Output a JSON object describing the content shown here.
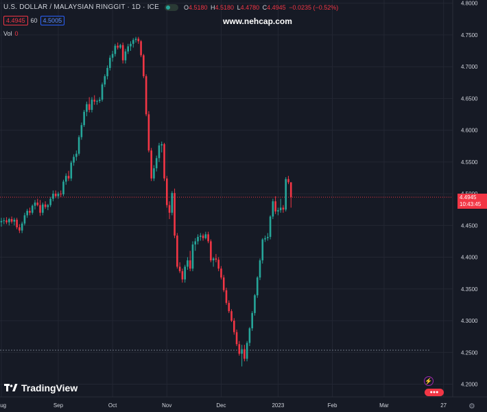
{
  "header": {
    "title": "U.S. DOLLAR / MALAYSIAN RINGGIT · 1D · ICE",
    "o_label": "O",
    "o_value": "4.5180",
    "h_label": "H",
    "h_value": "4.5180",
    "l_label": "L",
    "l_value": "4.4780",
    "c_label": "C",
    "c_value": "4.4945",
    "change": "−0.0235 (−0.52%)",
    "sell_price": "4.4945",
    "spread": "60",
    "buy_price": "4.5005",
    "vol_label": "Vol",
    "vol_value": "0"
  },
  "watermark": "www.nehcap.com",
  "brand": "TradingView",
  "last_price_label": {
    "price": "4.4945",
    "countdown": "10:43:45"
  },
  "colors": {
    "up": "#26a69a",
    "down": "#f23645",
    "background": "#161a25",
    "grid": "#232733",
    "text": "#d1d4dc"
  },
  "chart_data": {
    "type": "candlestick",
    "y_ticks": [
      "4.8000",
      "4.7500",
      "4.7000",
      "4.6500",
      "4.6000",
      "4.5500",
      "4.5000",
      "4.4500",
      "4.4000",
      "4.3500",
      "4.3000",
      "4.2500",
      "4.2000"
    ],
    "ylim": [
      4.18,
      4.805
    ],
    "x_ticks": [
      {
        "label": "Aug",
        "index": 0
      },
      {
        "label": "Sep",
        "index": 22
      },
      {
        "label": "Oct",
        "index": 43
      },
      {
        "label": "Nov",
        "index": 64
      },
      {
        "label": "Dec",
        "index": 85
      },
      {
        "label": "2023",
        "index": 107
      },
      {
        "label": "Feb",
        "index": 128
      },
      {
        "label": "Mar",
        "index": 148
      },
      {
        "label": "27",
        "index": 171
      }
    ],
    "last_price": 4.4945,
    "reference_line": 4.2535,
    "ohlc": [
      [
        4.455,
        4.462,
        4.448,
        4.457
      ],
      [
        4.457,
        4.462,
        4.452,
        4.458
      ],
      [
        4.458,
        4.463,
        4.452,
        4.455
      ],
      [
        4.455,
        4.462,
        4.45,
        4.46
      ],
      [
        4.46,
        4.464,
        4.453,
        4.456
      ],
      [
        4.456,
        4.462,
        4.45,
        4.459
      ],
      [
        4.459,
        4.462,
        4.444,
        4.447
      ],
      [
        4.447,
        4.452,
        4.438,
        4.442
      ],
      [
        4.442,
        4.456,
        4.438,
        4.453
      ],
      [
        4.453,
        4.47,
        4.45,
        4.466
      ],
      [
        4.466,
        4.476,
        4.462,
        4.473
      ],
      [
        4.473,
        4.478,
        4.466,
        4.47
      ],
      [
        4.47,
        4.483,
        4.467,
        4.481
      ],
      [
        4.481,
        4.49,
        4.475,
        4.486
      ],
      [
        4.486,
        4.492,
        4.48,
        4.482
      ],
      [
        4.482,
        4.49,
        4.465,
        4.47
      ],
      [
        4.47,
        4.486,
        4.466,
        4.483
      ],
      [
        4.483,
        4.488,
        4.476,
        4.479
      ],
      [
        4.479,
        4.484,
        4.474,
        4.482
      ],
      [
        4.482,
        4.495,
        4.479,
        4.492
      ],
      [
        4.492,
        4.505,
        4.488,
        4.5
      ],
      [
        4.5,
        4.505,
        4.493,
        4.496
      ],
      [
        4.496,
        4.503,
        4.492,
        4.5
      ],
      [
        4.5,
        4.505,
        4.495,
        4.499
      ],
      [
        4.499,
        4.522,
        4.496,
        4.519
      ],
      [
        4.519,
        4.532,
        4.514,
        4.528
      ],
      [
        4.528,
        4.536,
        4.52,
        4.524
      ],
      [
        4.524,
        4.552,
        4.52,
        4.549
      ],
      [
        4.549,
        4.562,
        4.544,
        4.558
      ],
      [
        4.558,
        4.568,
        4.552,
        4.563
      ],
      [
        4.563,
        4.592,
        4.56,
        4.589
      ],
      [
        4.589,
        4.612,
        4.585,
        4.608
      ],
      [
        4.608,
        4.632,
        4.605,
        4.629
      ],
      [
        4.629,
        4.645,
        4.622,
        4.641
      ],
      [
        4.641,
        4.652,
        4.628,
        4.632
      ],
      [
        4.632,
        4.652,
        4.628,
        4.648
      ],
      [
        4.648,
        4.655,
        4.64,
        4.645
      ],
      [
        4.645,
        4.648,
        4.64,
        4.646
      ],
      [
        4.646,
        4.652,
        4.643,
        4.648
      ],
      [
        4.648,
        4.675,
        4.645,
        4.672
      ],
      [
        4.672,
        4.688,
        4.668,
        4.685
      ],
      [
        4.685,
        4.702,
        4.68,
        4.698
      ],
      [
        4.698,
        4.718,
        4.694,
        4.714
      ],
      [
        4.714,
        4.725,
        4.708,
        4.72
      ],
      [
        4.72,
        4.736,
        4.716,
        4.733
      ],
      [
        4.733,
        4.738,
        4.727,
        4.73
      ],
      [
        4.73,
        4.736,
        4.728,
        4.734
      ],
      [
        4.734,
        4.738,
        4.705,
        4.71
      ],
      [
        4.71,
        4.728,
        4.705,
        4.724
      ],
      [
        4.724,
        4.736,
        4.72,
        4.732
      ],
      [
        4.732,
        4.74,
        4.725,
        4.736
      ],
      [
        4.736,
        4.745,
        4.73,
        4.742
      ],
      [
        4.742,
        4.747,
        4.738,
        4.744
      ],
      [
        4.744,
        4.747,
        4.736,
        4.74
      ],
      [
        4.74,
        4.742,
        4.715,
        4.718
      ],
      [
        4.718,
        4.72,
        4.682,
        4.685
      ],
      [
        4.685,
        4.688,
        4.622,
        4.625
      ],
      [
        4.625,
        4.63,
        4.565,
        4.568
      ],
      [
        4.568,
        4.572,
        4.52,
        4.524
      ],
      [
        4.524,
        4.545,
        4.52,
        4.54
      ],
      [
        4.54,
        4.56,
        4.535,
        4.556
      ],
      [
        4.556,
        4.58,
        4.55,
        4.576
      ],
      [
        4.576,
        4.582,
        4.565,
        4.578
      ],
      [
        4.578,
        4.58,
        4.52,
        4.524
      ],
      [
        4.524,
        4.528,
        4.478,
        4.482
      ],
      [
        4.482,
        4.488,
        4.46,
        4.47
      ],
      [
        4.47,
        4.504,
        4.466,
        4.501
      ],
      [
        4.501,
        4.508,
        4.43,
        4.434
      ],
      [
        4.434,
        4.438,
        4.382,
        4.385
      ],
      [
        4.385,
        4.392,
        4.375,
        4.378
      ],
      [
        4.378,
        4.382,
        4.36,
        4.365
      ],
      [
        4.365,
        4.388,
        4.36,
        4.385
      ],
      [
        4.385,
        4.4,
        4.38,
        4.395
      ],
      [
        4.395,
        4.41,
        4.378,
        4.382
      ],
      [
        4.382,
        4.425,
        4.378,
        4.42
      ],
      [
        4.42,
        4.43,
        4.41,
        4.425
      ],
      [
        4.425,
        4.436,
        4.42,
        4.432
      ],
      [
        4.432,
        4.438,
        4.426,
        4.434
      ],
      [
        4.434,
        4.437,
        4.426,
        4.43
      ],
      [
        4.43,
        4.44,
        4.428,
        4.436
      ],
      [
        4.436,
        4.44,
        4.422,
        4.425
      ],
      [
        4.425,
        4.428,
        4.392,
        4.395
      ],
      [
        4.395,
        4.4,
        4.385,
        4.398
      ],
      [
        4.398,
        4.405,
        4.392,
        4.396
      ],
      [
        4.396,
        4.4,
        4.378,
        4.382
      ],
      [
        4.382,
        4.386,
        4.365,
        4.368
      ],
      [
        4.368,
        4.372,
        4.345,
        4.348
      ],
      [
        4.348,
        4.352,
        4.325,
        4.328
      ],
      [
        4.328,
        4.332,
        4.312,
        4.315
      ],
      [
        4.315,
        4.318,
        4.298,
        4.3
      ],
      [
        4.3,
        4.304,
        4.278,
        4.282
      ],
      [
        4.282,
        4.286,
        4.26,
        4.263
      ],
      [
        4.263,
        4.268,
        4.245,
        4.248
      ],
      [
        4.248,
        4.262,
        4.228,
        4.255
      ],
      [
        4.255,
        4.262,
        4.236,
        4.24
      ],
      [
        4.24,
        4.268,
        4.236,
        4.265
      ],
      [
        4.265,
        4.29,
        4.26,
        4.288
      ],
      [
        4.288,
        4.315,
        4.284,
        4.312
      ],
      [
        4.312,
        4.342,
        4.308,
        4.34
      ],
      [
        4.34,
        4.37,
        4.336,
        4.368
      ],
      [
        4.368,
        4.398,
        4.364,
        4.395
      ],
      [
        4.395,
        4.43,
        4.39,
        4.428
      ],
      [
        4.428,
        4.434,
        4.424,
        4.43
      ],
      [
        4.43,
        4.438,
        4.426,
        4.432
      ],
      [
        4.432,
        4.466,
        4.428,
        4.464
      ],
      [
        4.464,
        4.492,
        4.46,
        4.488
      ],
      [
        4.488,
        4.496,
        4.468,
        4.472
      ],
      [
        4.472,
        4.478,
        4.466,
        4.474
      ],
      [
        4.474,
        4.492,
        4.47,
        4.478
      ],
      [
        4.478,
        4.482,
        4.47,
        4.475
      ],
      [
        4.475,
        4.526,
        4.472,
        4.523
      ],
      [
        4.523,
        4.528,
        4.515,
        4.518
      ],
      [
        4.518,
        4.518,
        4.478,
        4.4945
      ]
    ]
  }
}
